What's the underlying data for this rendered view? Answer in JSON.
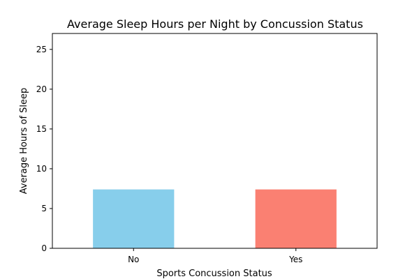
{
  "chart_data": {
    "type": "bar",
    "title": "Average Sleep Hours per Night by Concussion Status",
    "xlabel": "Sports Concussion Status",
    "ylabel": "Average Hours of Sleep",
    "categories": [
      "No",
      "Yes"
    ],
    "values": [
      7.4,
      7.4
    ],
    "colors": [
      "#87ceeb",
      "#fa8072"
    ],
    "ylim": [
      0,
      27
    ],
    "yticks": [
      0,
      5,
      10,
      15,
      20,
      25
    ],
    "grid": false,
    "legend": "none"
  }
}
